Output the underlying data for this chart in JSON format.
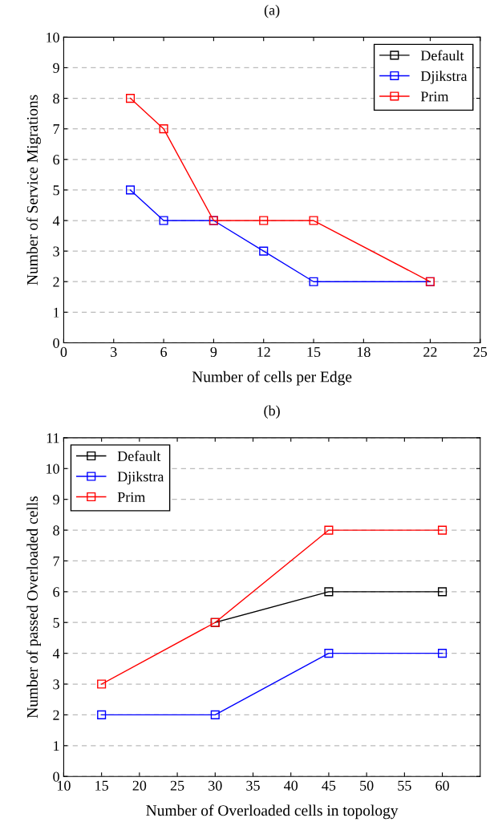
{
  "chart_data": [
    {
      "type": "line",
      "title": "(a)",
      "xlabel": "Number of cells per Edge",
      "ylabel": "Number of Service Migrations",
      "x": [
        4,
        6,
        9,
        12,
        15,
        22
      ],
      "series": [
        {
          "name": "Default",
          "color": "#000000",
          "values": [
            null,
            null,
            null,
            null,
            null,
            null
          ]
        },
        {
          "name": "Djikstra",
          "color": "#0000ff",
          "values": [
            5,
            4,
            4,
            3,
            2,
            2
          ]
        },
        {
          "name": "Prim",
          "color": "#ff0000",
          "values": [
            8,
            7,
            4,
            4,
            4,
            2
          ]
        }
      ],
      "xlim": [
        0,
        25
      ],
      "xticks": [
        0,
        3,
        6,
        9,
        12,
        15,
        18,
        22,
        25
      ],
      "ylim": [
        0,
        10
      ],
      "yticks": [
        0,
        1,
        2,
        3,
        4,
        5,
        6,
        7,
        8,
        9,
        10
      ],
      "grid": "y",
      "legend": "top right",
      "marker": "square",
      "line_style": "solid"
    },
    {
      "type": "line",
      "title": "(b)",
      "xlabel": "Number of Overloaded cells in topology",
      "ylabel": "Number of passed Overloaded cells",
      "x": [
        15,
        30,
        45,
        60
      ],
      "series": [
        {
          "name": "Default",
          "color": "#000000",
          "values": [
            null,
            5,
            6,
            6
          ]
        },
        {
          "name": "Djikstra",
          "color": "#0000ff",
          "values": [
            2,
            2,
            4,
            4
          ]
        },
        {
          "name": "Prim",
          "color": "#ff0000",
          "values": [
            3,
            5,
            8,
            8
          ]
        }
      ],
      "xlim": [
        10,
        65
      ],
      "xticks": [
        10,
        15,
        20,
        25,
        30,
        35,
        40,
        45,
        50,
        55,
        60
      ],
      "ylim": [
        0,
        11
      ],
      "yticks": [
        0,
        1,
        2,
        3,
        4,
        5,
        6,
        7,
        8,
        9,
        10,
        11
      ],
      "grid": "y",
      "legend": "top left",
      "marker": "square",
      "line_style": "solid"
    }
  ]
}
